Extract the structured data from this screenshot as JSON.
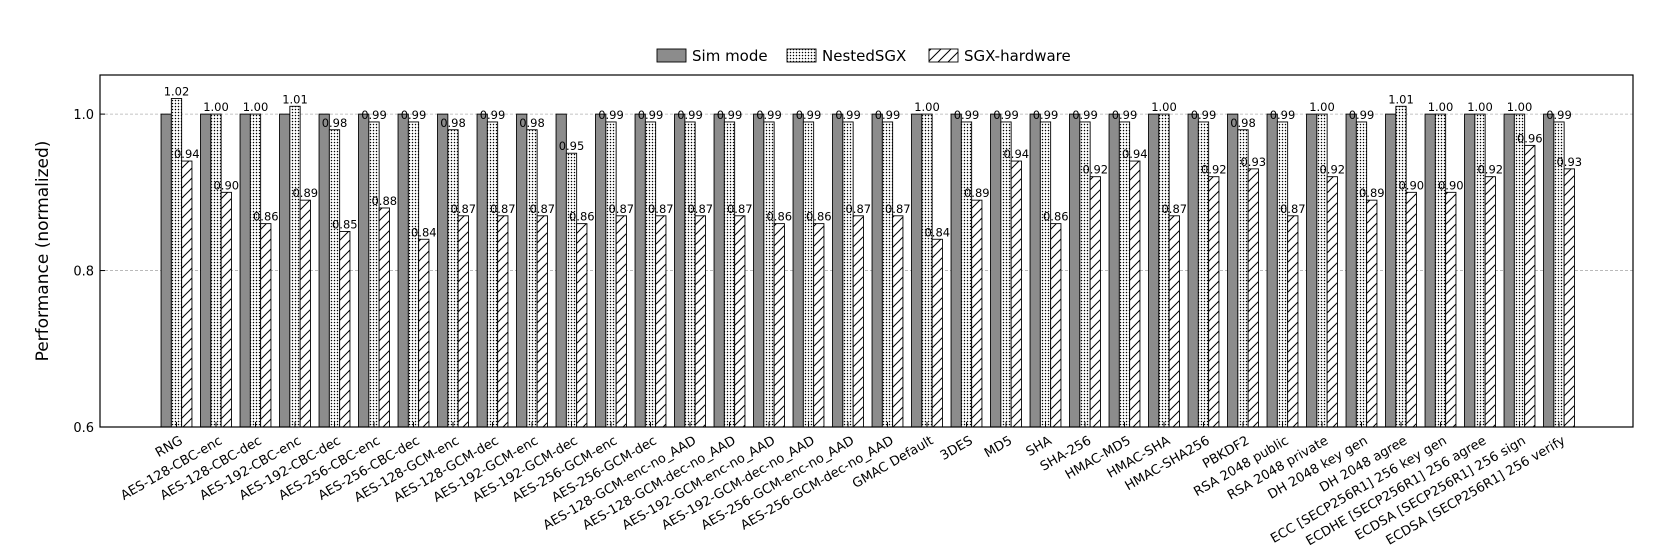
{
  "chart_data": {
    "type": "bar",
    "title": "",
    "xlabel": "",
    "ylabel": "Performance (normalized)",
    "ylim": [
      0.6,
      1.05
    ],
    "yticks": [
      0.6,
      0.8,
      1.0
    ],
    "grid": "horizontal dashed at y ticks",
    "legend_position": "top-center",
    "categories": [
      "RNG",
      "AES-128-CBC-enc",
      "AES-128-CBC-dec",
      "AES-192-CBC-enc",
      "AES-192-CBC-dec",
      "AES-256-CBC-enc",
      "AES-256-CBC-dec",
      "AES-128-GCM-enc",
      "AES-128-GCM-dec",
      "AES-192-GCM-enc",
      "AES-192-GCM-dec",
      "AES-256-GCM-enc",
      "AES-256-GCM-dec",
      "AES-128-GCM-enc-no_AAD",
      "AES-128-GCM-dec-no_AAD",
      "AES-192-GCM-enc-no_AAD",
      "AES-192-GCM-dec-no_AAD",
      "AES-256-GCM-enc-no_AAD",
      "AES-256-GCM-dec-no_AAD",
      "GMAC Default",
      "3DES",
      "MD5",
      "SHA",
      "SHA-256",
      "HMAC-MD5",
      "HMAC-SHA",
      "HMAC-SHA256",
      "PBKDF2",
      "RSA 2048 public",
      "RSA 2048 private",
      "DH 2048 key gen",
      "DH 2048 agree",
      "ECC [SECP256R1] 256 key gen",
      "ECDHE [SECP256R1] 256 agree",
      "ECDSA [SECP256R1] 256 sign",
      "ECDSA [SECP256R1] 256 verify"
    ],
    "series": [
      {
        "name": "Sim mode",
        "values": [
          1,
          1,
          1,
          1,
          1,
          1,
          1,
          1,
          1,
          1,
          1,
          1,
          1,
          1,
          1,
          1,
          1,
          1,
          1,
          1,
          1,
          1,
          1,
          1,
          1,
          1,
          1,
          1,
          1,
          1,
          1,
          1,
          1,
          1,
          1,
          1
        ]
      },
      {
        "name": "NestedSGX",
        "values": [
          1.02,
          1.0,
          1.0,
          1.01,
          0.98,
          0.99,
          0.99,
          0.98,
          0.99,
          0.98,
          0.95,
          0.99,
          0.99,
          0.99,
          0.99,
          0.99,
          0.99,
          0.99,
          0.99,
          1.0,
          0.99,
          0.99,
          0.99,
          0.99,
          0.99,
          1.0,
          0.99,
          0.98,
          0.99,
          1.0,
          0.99,
          1.01,
          1.0,
          1.0,
          1.0,
          0.99
        ]
      },
      {
        "name": "SGX-hardware",
        "values": [
          0.94,
          0.9,
          0.86,
          0.89,
          0.85,
          0.88,
          0.84,
          0.87,
          0.87,
          0.87,
          0.86,
          0.87,
          0.87,
          0.87,
          0.87,
          0.86,
          0.86,
          0.87,
          0.87,
          0.84,
          0.89,
          0.94,
          0.86,
          0.92,
          0.94,
          0.87,
          0.92,
          0.93,
          0.87,
          0.92,
          0.89,
          0.9,
          0.9,
          0.92,
          0.96,
          0.93
        ]
      }
    ],
    "colors": {
      "sim": "#8c8c8c",
      "nested": "#ffffff",
      "hardware": "#ffffff",
      "grid": "#b0b0b0",
      "edge": "#000000"
    }
  }
}
